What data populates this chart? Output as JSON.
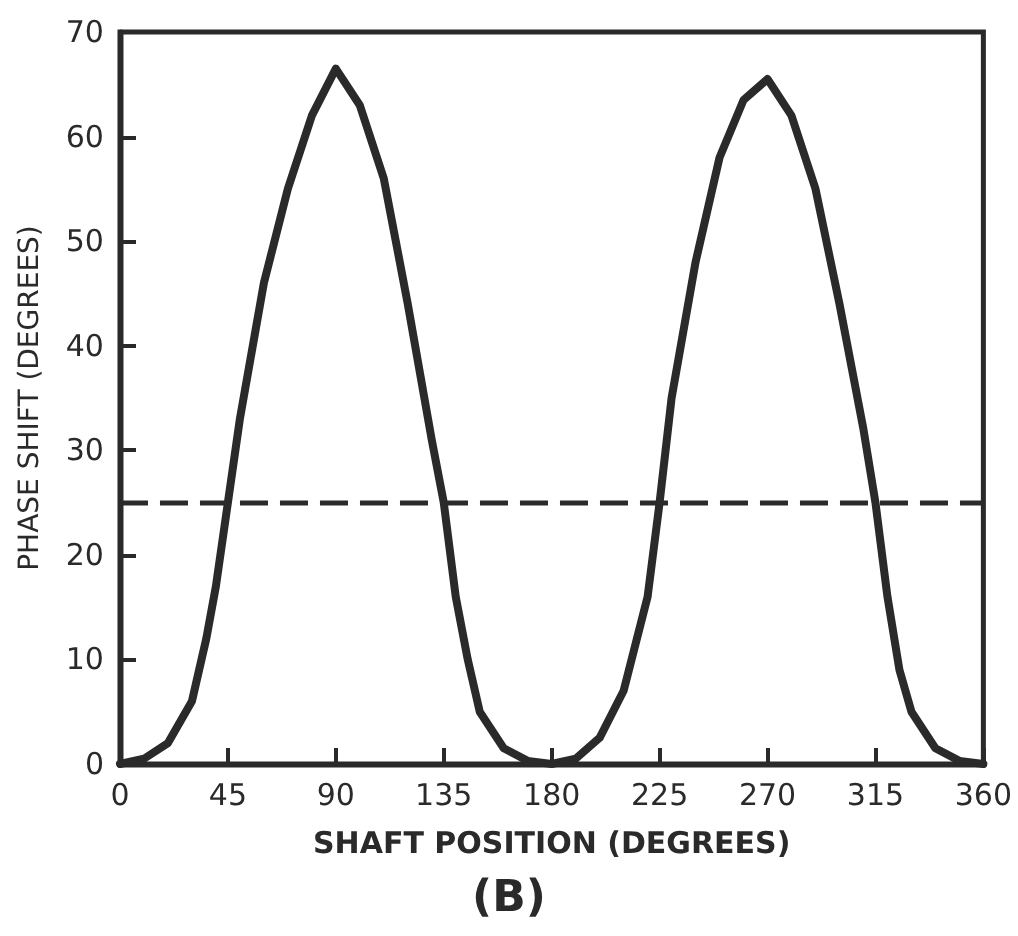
{
  "chart_data": {
    "type": "line",
    "xlabel": "SHAFT POSITION (DEGREES)",
    "ylabel": "PHASE SHIFT (DEGREES)",
    "annotations": [
      "(B)"
    ],
    "x": [
      0,
      10,
      20,
      30,
      36,
      40,
      45,
      50,
      60,
      70,
      80,
      90,
      100,
      110,
      120,
      130,
      135,
      140,
      145,
      150,
      160,
      170,
      180,
      190,
      200,
      210,
      220,
      225,
      230,
      240,
      250,
      260,
      270,
      280,
      290,
      300,
      310,
      315,
      320,
      325,
      330,
      340,
      350,
      360
    ],
    "series": [
      {
        "color": "#2a2a2a",
        "values": [
          0,
          0.5,
          2,
          6,
          12,
          17,
          25,
          33,
          46,
          55,
          62,
          66.5,
          63,
          56,
          44,
          31,
          25,
          16,
          10,
          5,
          1.5,
          0.3,
          0,
          0.5,
          2.5,
          7,
          16,
          25,
          35,
          48,
          58,
          63.5,
          65.5,
          62,
          55,
          44,
          32,
          25,
          16,
          9,
          5,
          1.5,
          0.3,
          0
        ]
      }
    ],
    "xlim": [
      0,
      360
    ],
    "xticks": [
      0,
      45,
      90,
      135,
      180,
      225,
      270,
      315,
      360
    ],
    "ylim": [
      0,
      70
    ],
    "yticks": [
      0,
      10,
      20,
      30,
      40,
      50,
      60,
      70
    ],
    "ref_lines": [
      {
        "axis": "y",
        "value": 25,
        "color": "#2a2a2a",
        "line_style": "dashed"
      }
    ],
    "grid": false,
    "marker": "none",
    "line_style": "solid"
  }
}
